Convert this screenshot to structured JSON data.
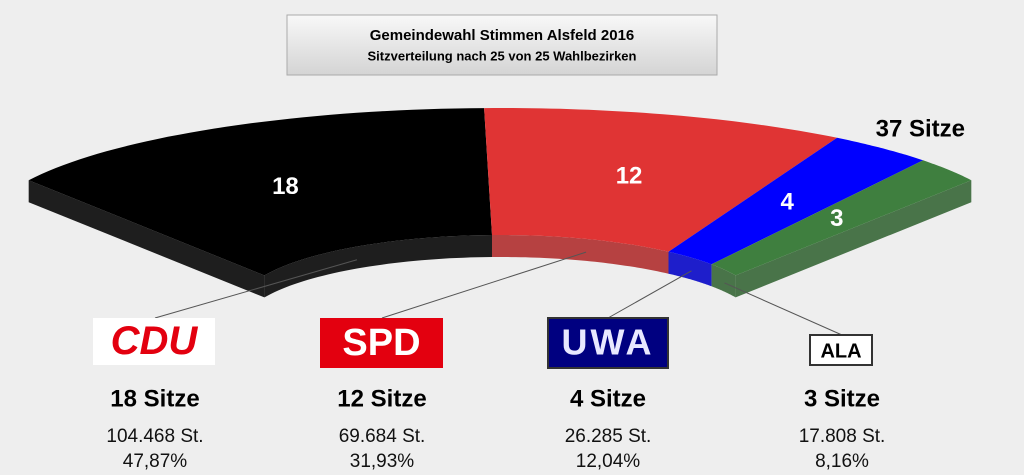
{
  "chart_data": {
    "type": "parliament",
    "title": "Gemeindewahl Stimmen Alsfeld 2016",
    "subtitle": "Sitzverteilung nach 25 von 25 Wahlbezirken",
    "total": {
      "value": 37,
      "label": "37 Sitze"
    },
    "categories": [
      "CDU",
      "SPD",
      "UWA",
      "ALA"
    ],
    "values": [
      18,
      12,
      4,
      3
    ],
    "value_labels": [
      "18 Sitze",
      "12 Sitze",
      "4 Sitze",
      "3 Sitze"
    ],
    "colors": [
      "#000000",
      "#e03434",
      "#0000ff",
      "#3f7f3f"
    ],
    "votes": [
      104468,
      69684,
      26285,
      17808
    ],
    "vote_labels": [
      "104.468 St.",
      "69.684 St.",
      "26.285 St.",
      "17.808 St."
    ],
    "percentages": [
      47.87,
      31.93,
      12.04,
      8.16
    ],
    "percentage_labels": [
      "47,87%",
      "31,93%",
      "12,04%",
      "8,16%"
    ]
  }
}
